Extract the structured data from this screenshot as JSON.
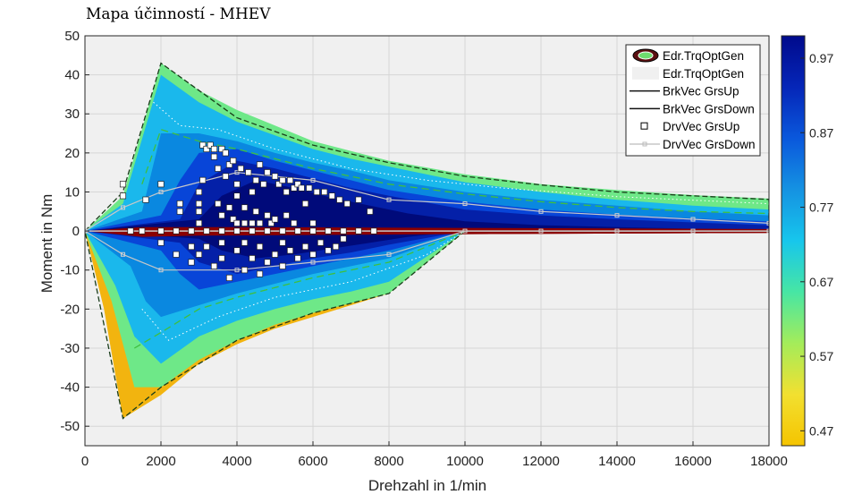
{
  "chart_data": {
    "type": "heatmap",
    "title": "Mapa účinností - MHEV",
    "xlabel": "Drehzahl in 1/min",
    "ylabel": "Moment in Nm",
    "xlim": [
      0,
      18000
    ],
    "ylim": [
      -55,
      50
    ],
    "xticks": [
      "0",
      "2000",
      "4000",
      "6000",
      "8000",
      "10000",
      "12000",
      "14000",
      "16000",
      "18000"
    ],
    "yticks": [
      "50",
      "40",
      "30",
      "20",
      "10",
      "0",
      "-10",
      "-20",
      "-30",
      "-40",
      "-50"
    ],
    "grid": true,
    "legend_position": "top-right",
    "legend": [
      {
        "label": "Edr.TrqOptGen",
        "kind": "ring"
      },
      {
        "label": "Edr.TrqOptGen",
        "kind": "patch"
      },
      {
        "label": "BrkVec GrsUp",
        "kind": "line"
      },
      {
        "label": "BrkVec GrsDown",
        "kind": "line"
      },
      {
        "label": "DrvVec GrsUp",
        "kind": "square"
      },
      {
        "label": "DrvVec GrsDown",
        "kind": "thin-line"
      }
    ],
    "colorbar": {
      "range": [
        0.45,
        1.0
      ],
      "ticks": [
        "0.97",
        "0.87",
        "0.77",
        "0.67",
        "0.57",
        "0.47"
      ],
      "colormap": [
        "#f5c400",
        "#f2e030",
        "#a4ec5a",
        "#47e6a4",
        "#17c6ec",
        "#1592e2",
        "#0a58dc",
        "#0526b8",
        "#000a8c"
      ]
    },
    "efficiency_bands": [
      {
        "level": 0.5,
        "color": "#f2b40f",
        "upper": [
          [
            0,
            0
          ],
          [
            500,
            4
          ],
          [
            1000,
            9
          ],
          [
            1500,
            10
          ]
        ],
        "lower": [
          [
            0,
            0
          ],
          [
            500,
            -20
          ],
          [
            1000,
            -48
          ],
          [
            2000,
            -42
          ],
          [
            3000,
            -34
          ],
          [
            4000,
            -29
          ],
          [
            5000,
            -25
          ],
          [
            6000,
            -22
          ],
          [
            7000,
            -19
          ],
          [
            8000,
            -16
          ],
          [
            10000,
            0
          ]
        ]
      },
      {
        "level": 0.6,
        "color": "#6ee888",
        "upper": [
          [
            0,
            0
          ],
          [
            1000,
            9
          ],
          [
            2000,
            43
          ],
          [
            3000,
            36
          ],
          [
            4000,
            31
          ],
          [
            5000,
            27
          ],
          [
            6000,
            23
          ],
          [
            7000,
            20.5
          ],
          [
            8000,
            18
          ],
          [
            10000,
            14.5
          ],
          [
            12000,
            12
          ],
          [
            14000,
            10.5
          ],
          [
            16000,
            9.2
          ],
          [
            18000,
            8.3
          ]
        ],
        "lower": [
          [
            0,
            0
          ],
          [
            700,
            -18
          ],
          [
            1300,
            -40
          ],
          [
            2000,
            -40
          ],
          [
            3000,
            -33
          ],
          [
            4000,
            -28
          ],
          [
            5000,
            -24
          ],
          [
            6000,
            -21
          ],
          [
            7000,
            -18.5
          ],
          [
            8000,
            -16
          ],
          [
            10000,
            0
          ]
        ]
      },
      {
        "level": 0.65,
        "color": "#1ab8ec",
        "upper": [
          [
            0,
            0
          ],
          [
            1000,
            7
          ],
          [
            2000,
            40
          ],
          [
            3000,
            33
          ],
          [
            4000,
            28
          ],
          [
            5000,
            24.5
          ],
          [
            6000,
            21
          ],
          [
            7000,
            18.5
          ],
          [
            8000,
            16.5
          ],
          [
            10000,
            12.5
          ],
          [
            12000,
            10
          ],
          [
            14000,
            8
          ],
          [
            16000,
            6.5
          ],
          [
            18000,
            5.5
          ]
        ],
        "lower": [
          [
            0,
            0
          ],
          [
            800,
            -14
          ],
          [
            1300,
            -27
          ],
          [
            2000,
            -34
          ],
          [
            3000,
            -27
          ],
          [
            4000,
            -23
          ],
          [
            5000,
            -20
          ],
          [
            6000,
            -17.5
          ],
          [
            7000,
            -15.5
          ],
          [
            8000,
            -13
          ],
          [
            10000,
            0
          ]
        ]
      },
      {
        "level": 0.7,
        "color": "#0a88e0",
        "upper": [
          [
            0,
            0
          ],
          [
            1500,
            5
          ],
          [
            2000,
            25
          ],
          [
            3000,
            25
          ],
          [
            4000,
            23
          ],
          [
            5000,
            20
          ],
          [
            6000,
            17.5
          ],
          [
            7000,
            15.5
          ],
          [
            8000,
            13
          ],
          [
            10000,
            10
          ],
          [
            12000,
            8
          ],
          [
            14000,
            6.5
          ],
          [
            16000,
            5
          ],
          [
            18000,
            4
          ]
        ],
        "lower": [
          [
            0,
            0
          ],
          [
            1200,
            -9
          ],
          [
            1600,
            -18
          ],
          [
            2000,
            -22
          ],
          [
            3000,
            -19
          ],
          [
            4000,
            -16
          ],
          [
            5000,
            -13.5
          ],
          [
            6000,
            -11
          ],
          [
            7000,
            -9
          ],
          [
            8000,
            -7
          ],
          [
            10000,
            0
          ]
        ]
      },
      {
        "level": 0.75,
        "color": "#0845d8",
        "upper": [
          [
            0,
            0
          ],
          [
            2000,
            4
          ],
          [
            2500,
            13
          ],
          [
            3000,
            20
          ],
          [
            4000,
            21
          ],
          [
            5000,
            18
          ],
          [
            6000,
            15.5
          ],
          [
            7000,
            13
          ],
          [
            8000,
            10.5
          ],
          [
            10000,
            7.5
          ],
          [
            12000,
            5.5
          ],
          [
            14000,
            4.2
          ],
          [
            16000,
            3.2
          ],
          [
            18000,
            2.5
          ]
        ],
        "lower": [
          [
            0,
            0
          ],
          [
            2000,
            -5
          ],
          [
            2500,
            -11
          ],
          [
            3000,
            -15
          ],
          [
            4000,
            -13
          ],
          [
            5000,
            -11
          ],
          [
            6000,
            -9
          ],
          [
            7000,
            -7
          ],
          [
            8000,
            -5
          ],
          [
            10000,
            0
          ]
        ]
      },
      {
        "level": 0.8,
        "color": "#0420a8",
        "upper": [
          [
            0,
            0
          ],
          [
            2500,
            3
          ],
          [
            3000,
            12
          ],
          [
            4000,
            18
          ],
          [
            5000,
            16
          ],
          [
            6000,
            13.5
          ],
          [
            7000,
            11
          ],
          [
            8000,
            9
          ],
          [
            10000,
            5.5
          ],
          [
            12000,
            4
          ],
          [
            14000,
            3
          ],
          [
            16000,
            2.2
          ],
          [
            18000,
            1.5
          ]
        ],
        "lower": [
          [
            0,
            0
          ],
          [
            2500,
            -3
          ],
          [
            3000,
            -8
          ],
          [
            4000,
            -11
          ],
          [
            5000,
            -9
          ],
          [
            6000,
            -7
          ],
          [
            7000,
            -5.5
          ],
          [
            8000,
            -3.5
          ],
          [
            10000,
            0
          ]
        ]
      },
      {
        "level": 0.97,
        "color": "#000a7a",
        "upper": [
          [
            0,
            0
          ],
          [
            3000,
            3
          ],
          [
            3600,
            9
          ],
          [
            4500,
            13
          ],
          [
            5500,
            11
          ],
          [
            6500,
            8.5
          ],
          [
            7500,
            6.5
          ],
          [
            8500,
            4.5
          ],
          [
            10000,
            2.5
          ],
          [
            12000,
            1.5
          ],
          [
            14000,
            1
          ],
          [
            16000,
            0.6
          ],
          [
            18000,
            0.4
          ]
        ],
        "lower": [
          [
            0,
            0
          ],
          [
            3000,
            -2
          ],
          [
            3600,
            -5
          ],
          [
            4500,
            -7
          ],
          [
            5500,
            -6
          ],
          [
            6500,
            -4.5
          ],
          [
            7500,
            -3
          ],
          [
            8500,
            -1.5
          ],
          [
            10000,
            0
          ]
        ]
      }
    ],
    "brk_vec_grs_up": [
      [
        0,
        0
      ],
      [
        1000,
        0
      ],
      [
        1500,
        0
      ],
      [
        3000,
        0
      ],
      [
        5000,
        0
      ],
      [
        7000,
        0
      ],
      [
        9000,
        0
      ],
      [
        10000,
        0
      ],
      [
        12000,
        0
      ],
      [
        14000,
        0
      ],
      [
        16000,
        0
      ],
      [
        18000,
        0
      ]
    ],
    "outer_envelope": [
      [
        0,
        0
      ],
      [
        1000,
        10
      ],
      [
        2000,
        43
      ],
      [
        4000,
        29
      ],
      [
        6000,
        22
      ],
      [
        8000,
        17.5
      ],
      [
        10000,
        14
      ],
      [
        12000,
        11.8
      ],
      [
        14000,
        10
      ],
      [
        16000,
        9
      ],
      [
        18000,
        8.1
      ],
      [
        18000,
        0
      ],
      [
        10000,
        0
      ],
      [
        8000,
        -16
      ],
      [
        6000,
        -21
      ],
      [
        4000,
        -28
      ],
      [
        2000,
        -40
      ],
      [
        1000,
        -48
      ],
      [
        0,
        0
      ]
    ],
    "drv_vec_grs_down": [
      [
        0,
        0
      ],
      [
        1000,
        -6
      ],
      [
        2000,
        -10
      ],
      [
        4000,
        -10
      ],
      [
        6000,
        -8
      ],
      [
        8000,
        -6
      ],
      [
        10000,
        0
      ],
      [
        12000,
        0
      ],
      [
        14000,
        0
      ],
      [
        16000,
        0
      ],
      [
        18000,
        0
      ]
    ],
    "drv_vec_grs_up_line": [
      [
        0,
        0
      ],
      [
        1000,
        6
      ],
      [
        2000,
        10
      ],
      [
        4000,
        15
      ],
      [
        6000,
        13
      ],
      [
        8000,
        8
      ],
      [
        10000,
        7
      ],
      [
        12000,
        5
      ],
      [
        14000,
        4
      ],
      [
        16000,
        3
      ],
      [
        18000,
        2
      ]
    ],
    "drv_vec_grs_up_points": [
      [
        1000,
        9
      ],
      [
        1000,
        12
      ],
      [
        1600,
        8
      ],
      [
        2000,
        12
      ],
      [
        2500,
        5
      ],
      [
        2500,
        7
      ],
      [
        3000,
        2
      ],
      [
        3000,
        5
      ],
      [
        3000,
        7
      ],
      [
        3000,
        10
      ],
      [
        3100,
        13
      ],
      [
        3100,
        22
      ],
      [
        3200,
        21
      ],
      [
        3300,
        22
      ],
      [
        3400,
        19
      ],
      [
        3400,
        21
      ],
      [
        3500,
        16
      ],
      [
        3500,
        7
      ],
      [
        3600,
        4
      ],
      [
        3600,
        21
      ],
      [
        3700,
        20
      ],
      [
        3700,
        14
      ],
      [
        3800,
        17
      ],
      [
        3800,
        6
      ],
      [
        3900,
        3
      ],
      [
        3900,
        18
      ],
      [
        4000,
        12
      ],
      [
        4000,
        9
      ],
      [
        4000,
        2
      ],
      [
        4100,
        16
      ],
      [
        4200,
        6
      ],
      [
        4200,
        2
      ],
      [
        4300,
        15
      ],
      [
        4400,
        10
      ],
      [
        4400,
        2
      ],
      [
        4500,
        13
      ],
      [
        4500,
        5
      ],
      [
        4600,
        17
      ],
      [
        4600,
        2
      ],
      [
        4700,
        12
      ],
      [
        4800,
        15
      ],
      [
        4800,
        4
      ],
      [
        4900,
        2
      ],
      [
        5000,
        14
      ],
      [
        5000,
        3
      ],
      [
        5100,
        12
      ],
      [
        5200,
        13
      ],
      [
        5300,
        10
      ],
      [
        5300,
        4
      ],
      [
        5400,
        13
      ],
      [
        5500,
        11
      ],
      [
        5500,
        2
      ],
      [
        5600,
        12
      ],
      [
        5700,
        11
      ],
      [
        5800,
        7
      ],
      [
        5900,
        11
      ],
      [
        6000,
        2
      ],
      [
        6100,
        10
      ],
      [
        6300,
        10
      ],
      [
        6500,
        9
      ],
      [
        6700,
        8
      ],
      [
        6900,
        7
      ],
      [
        7200,
        8
      ],
      [
        7500,
        5
      ],
      [
        1200,
        0
      ],
      [
        1500,
        0
      ],
      [
        2000,
        0
      ],
      [
        2400,
        0
      ],
      [
        2800,
        0
      ],
      [
        3200,
        0
      ],
      [
        3600,
        0
      ],
      [
        4000,
        0
      ],
      [
        4400,
        0
      ],
      [
        4800,
        0
      ],
      [
        5200,
        0
      ],
      [
        5600,
        0
      ],
      [
        6000,
        0
      ],
      [
        6400,
        0
      ],
      [
        6800,
        0
      ],
      [
        7200,
        0
      ],
      [
        7600,
        0
      ],
      [
        2000,
        -3
      ],
      [
        2400,
        -6
      ],
      [
        2800,
        -4
      ],
      [
        2800,
        -8
      ],
      [
        3000,
        -6
      ],
      [
        3200,
        -4
      ],
      [
        3400,
        -9
      ],
      [
        3600,
        -3
      ],
      [
        3600,
        -7
      ],
      [
        3800,
        -12
      ],
      [
        4000,
        -5
      ],
      [
        4200,
        -10
      ],
      [
        4200,
        -3
      ],
      [
        4400,
        -7
      ],
      [
        4600,
        -11
      ],
      [
        4600,
        -4
      ],
      [
        4800,
        -8
      ],
      [
        5000,
        -6
      ],
      [
        5200,
        -9
      ],
      [
        5200,
        -3
      ],
      [
        5400,
        -5
      ],
      [
        5600,
        -7
      ],
      [
        5800,
        -4
      ],
      [
        6000,
        -6
      ],
      [
        6200,
        -3
      ],
      [
        6400,
        -5
      ],
      [
        6600,
        -4
      ],
      [
        6800,
        -2
      ]
    ]
  }
}
